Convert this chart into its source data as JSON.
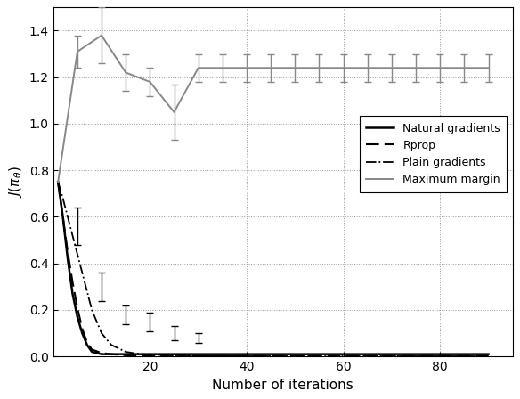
{
  "title": "",
  "xlabel": "Number of iterations",
  "ylabel": "J(\\pi_\\theta)",
  "xlim": [
    0,
    95
  ],
  "ylim": [
    0,
    1.5
  ],
  "yticks": [
    0,
    0.2,
    0.4,
    0.6,
    0.8,
    1.0,
    1.2,
    1.4
  ],
  "xticks": [
    20,
    40,
    60,
    80
  ],
  "natural_gradients": {
    "x": [
      1,
      2,
      3,
      4,
      5,
      6,
      7,
      8,
      10,
      12,
      15,
      18,
      20,
      25,
      30,
      35,
      40,
      50,
      60,
      70,
      80,
      90
    ],
    "y": [
      0.75,
      0.6,
      0.42,
      0.27,
      0.17,
      0.1,
      0.05,
      0.02,
      0.01,
      0.01,
      0.01,
      0.01,
      0.01,
      0.01,
      0.01,
      0.01,
      0.01,
      0.01,
      0.01,
      0.01,
      0.01,
      0.01
    ],
    "color": "#000000",
    "linestyle": "solid",
    "linewidth": 1.8,
    "label": "Natural gradients"
  },
  "ng_errbar_x": [
    5,
    10,
    15,
    20,
    25,
    30
  ],
  "ng_errbar_y": [
    0.56,
    0.3,
    0.18,
    0.15,
    0.1,
    0.08
  ],
  "ng_errbar_err": [
    0.08,
    0.06,
    0.04,
    0.04,
    0.03,
    0.02
  ],
  "rprop": {
    "x": [
      1,
      2,
      3,
      4,
      5,
      6,
      7,
      8,
      10,
      12,
      15,
      18,
      20,
      25,
      30,
      35,
      40,
      50,
      60,
      70,
      80,
      90
    ],
    "y": [
      0.75,
      0.6,
      0.45,
      0.32,
      0.21,
      0.12,
      0.06,
      0.03,
      0.015,
      0.01,
      0.005,
      0.003,
      0.002,
      0.002,
      0.002,
      0.002,
      0.002,
      0.002,
      0.002,
      0.002,
      0.002,
      0.002
    ],
    "color": "#000000",
    "linestyle": "dashed",
    "linewidth": 1.5,
    "label": "Rprop"
  },
  "plain_gradients": {
    "x": [
      1,
      2,
      3,
      4,
      5,
      6,
      7,
      8,
      10,
      12,
      15,
      18,
      20,
      25,
      30,
      35,
      40,
      50,
      60,
      70,
      80,
      90
    ],
    "y": [
      0.75,
      0.68,
      0.6,
      0.52,
      0.44,
      0.36,
      0.28,
      0.2,
      0.1,
      0.05,
      0.02,
      0.01,
      0.008,
      0.005,
      0.003,
      0.002,
      0.001,
      0.001,
      0.001,
      0.001,
      0.001,
      0.001
    ],
    "color": "#000000",
    "linestyle": "dashdot",
    "linewidth": 1.3,
    "label": "Plain gradients"
  },
  "maximum_margin": {
    "x": [
      1,
      5,
      10,
      15,
      20,
      25,
      30,
      35,
      40,
      45,
      50,
      55,
      60,
      65,
      70,
      75,
      80,
      85,
      90
    ],
    "y": [
      0.75,
      1.31,
      1.38,
      1.22,
      1.18,
      1.05,
      1.24,
      1.24,
      1.24,
      1.24,
      1.24,
      1.24,
      1.24,
      1.24,
      1.24,
      1.24,
      1.24,
      1.24,
      1.24
    ],
    "yerr_x": [
      5,
      10,
      15,
      20,
      25,
      30,
      35,
      40,
      45,
      50,
      55,
      60,
      65,
      70,
      75,
      80,
      85,
      90
    ],
    "yerr_y": [
      1.31,
      1.38,
      1.22,
      1.18,
      1.05,
      1.24,
      1.24,
      1.24,
      1.24,
      1.24,
      1.24,
      1.24,
      1.24,
      1.24,
      1.24,
      1.24,
      1.24,
      1.24
    ],
    "yerr_vals": [
      0.07,
      0.12,
      0.08,
      0.06,
      0.12,
      0.06,
      0.06,
      0.06,
      0.06,
      0.06,
      0.06,
      0.06,
      0.06,
      0.06,
      0.06,
      0.06,
      0.06,
      0.06
    ],
    "color": "#888888",
    "linestyle": "solid",
    "linewidth": 1.4,
    "label": "Maximum margin"
  },
  "background_color": "#ffffff",
  "grid_color": "#999999",
  "grid_linestyle": ":"
}
